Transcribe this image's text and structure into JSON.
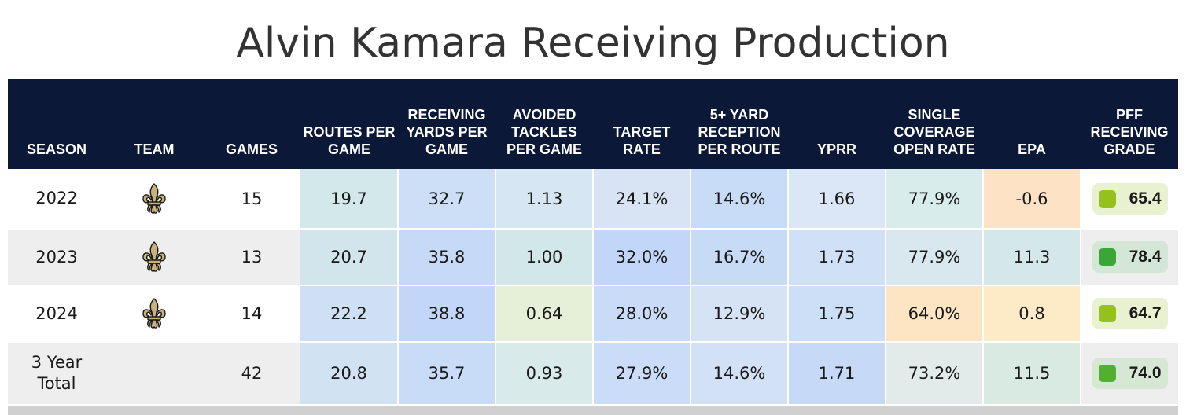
{
  "title": "Alvin Kamara Receiving Production",
  "columns": [
    "SEASON",
    "TEAM",
    "GAMES",
    "ROUTES PER GAME",
    "RECEIVING YARDS PER GAME",
    "AVOIDED TACKLES PER GAME",
    "TARGET RATE",
    "5+ YARD RECEPTION PER ROUTE",
    "YPRR",
    "SINGLE COVERAGE OPEN RATE",
    "EPA",
    "PFF RECEIVING GRADE"
  ],
  "team_icon": "saints-fleur-de-lis-icon",
  "rows": [
    {
      "season": "2022",
      "games": "15",
      "has_logo": true,
      "values": [
        "19.7",
        "32.7",
        "1.13",
        "24.1%",
        "14.6%",
        "1.66",
        "77.9%",
        "-0.6"
      ],
      "cell_colors": [
        "#d2e8ea",
        "#cddff7",
        "#d6e6f2",
        "#d8e4f4",
        "#c9dcf7",
        "#dbe6f7",
        "#d9ecec",
        "#fde2c5"
      ],
      "grade": "65.4",
      "grade_color": "#95c11f",
      "grade_bg": "#e8f2d0"
    },
    {
      "season": "2023",
      "games": "13",
      "has_logo": true,
      "values": [
        "20.7",
        "35.8",
        "1.00",
        "32.0%",
        "16.7%",
        "1.73",
        "77.9%",
        "11.3"
      ],
      "cell_colors": [
        "#d2e4ec",
        "#c6daf7",
        "#d2e8e8",
        "#c1d6f9",
        "#c7dbf7",
        "#d0e0f7",
        "#d8e8ee",
        "#d4e8ea"
      ],
      "grade": "78.4",
      "grade_color": "#3aa638",
      "grade_bg": "#d4e6d6"
    },
    {
      "season": "2024",
      "games": "14",
      "has_logo": true,
      "values": [
        "22.2",
        "38.8",
        "0.64",
        "28.0%",
        "12.9%",
        "1.75",
        "64.0%",
        "0.8"
      ],
      "cell_colors": [
        "#cfdff4",
        "#c1d6f8",
        "#e6efd8",
        "#c9dbf7",
        "#d6e3f4",
        "#cddff7",
        "#fde5c4",
        "#fdebc8"
      ],
      "grade": "64.7",
      "grade_color": "#95c11f",
      "grade_bg": "#e8f2d0"
    },
    {
      "season": "3 Year Total",
      "games": "42",
      "has_logo": false,
      "values": [
        "20.8",
        "35.7",
        "0.93",
        "27.9%",
        "14.6%",
        "1.71",
        "73.2%",
        "11.5"
      ],
      "cell_colors": [
        "#d1e3f2",
        "#c8dbf7",
        "#d8eaea",
        "#cadcf7",
        "#d2e1f5",
        "#c6daf8",
        "#e3ebea",
        "#d8eae2"
      ],
      "grade": "74.0",
      "grade_color": "#52b030",
      "grade_bg": "#d6e8d4"
    }
  ]
}
